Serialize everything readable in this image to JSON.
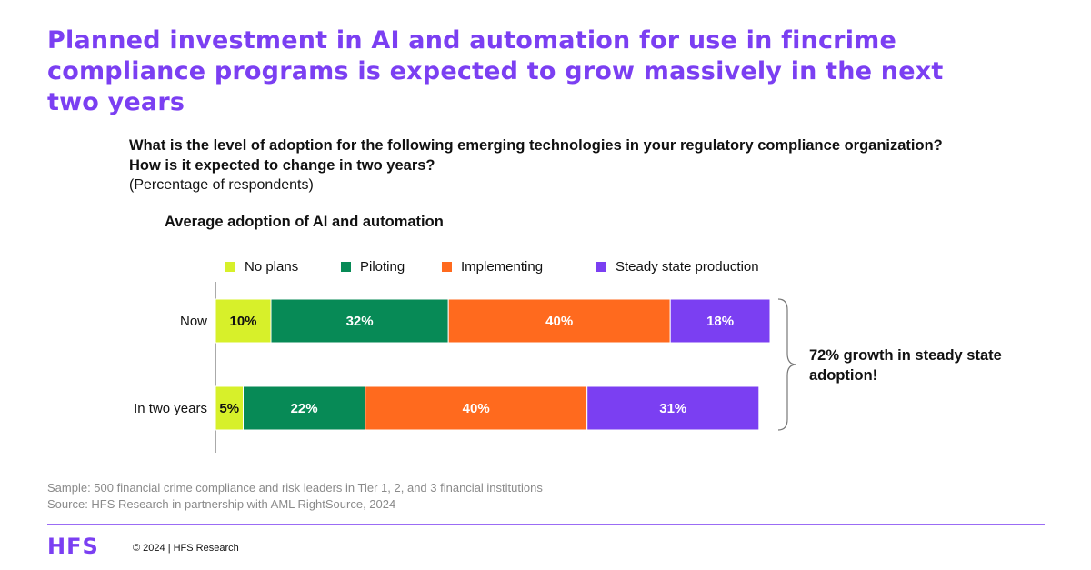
{
  "headline": "Planned investment in AI and automation for use in fincrime compliance programs is expected to grow massively in the next two years",
  "question": "What is the level of adoption for the following emerging technologies in your regulatory compliance organization? How is it expected to change in two years?",
  "note": "(Percentage of respondents)",
  "chart_data": {
    "type": "bar",
    "orientation": "horizontal",
    "stacked": true,
    "title": "Average adoption of AI and automation",
    "categories": [
      "Now",
      "In two years"
    ],
    "series": [
      {
        "name": "No plans",
        "values": [
          10,
          5
        ],
        "labels": [
          "10%",
          "5%"
        ],
        "color": "#d7f02a"
      },
      {
        "name": "Piloting",
        "values": [
          32,
          22
        ],
        "labels": [
          "32%",
          "22%"
        ],
        "color": "#078a56"
      },
      {
        "name": "Implementing",
        "values": [
          40,
          40
        ],
        "labels": [
          "40%",
          "40%"
        ],
        "color": "#ff6a1e"
      },
      {
        "name": "Steady state production",
        "values": [
          18,
          31
        ],
        "labels": [
          "18%",
          "31%"
        ],
        "color": "#7b3ff2"
      }
    ],
    "legend_position": "top",
    "annotation": "72% growth in steady state adoption!"
  },
  "footer": {
    "sample": "Sample: 500 financial crime compliance and risk leaders in Tier 1, 2, and 3 financial institutions",
    "source": "Source: HFS Research in partnership with AML RightSource, 2024",
    "logo": "HFS",
    "copyright": "© 2024 | HFS Research"
  },
  "colors": {
    "accent": "#7b3ff2",
    "text": "#111111",
    "muted": "#8a8a8a"
  }
}
